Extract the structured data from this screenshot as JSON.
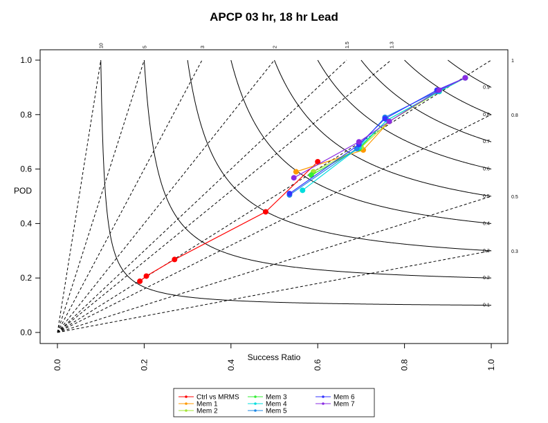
{
  "chart_data": {
    "type": "performance-diagram",
    "title": "APCP 03 hr, 18 hr Lead",
    "xlabel": "Success Ratio",
    "ylabel": "POD",
    "xlim": [
      0,
      1
    ],
    "ylim": [
      0,
      1
    ],
    "x_ticks": [
      "0.0",
      "0.2",
      "0.4",
      "0.6",
      "0.8",
      "1.0"
    ],
    "y_ticks": [
      "0.0",
      "0.2",
      "0.4",
      "0.6",
      "0.8",
      "1.0"
    ],
    "csi_contours": [
      0.1,
      0.2,
      0.3,
      0.4,
      0.5,
      0.6,
      0.7,
      0.8,
      0.9
    ],
    "csi_labels": [
      "0.1",
      "0.2",
      "0.3",
      "0.4",
      "0.5",
      "0.6",
      "0.7",
      "0.8",
      "0.9"
    ],
    "bias_lines": [
      0.3,
      0.5,
      0.8,
      1,
      1.3,
      1.5,
      2,
      3,
      5,
      10
    ],
    "bias_labels": [
      "0.3",
      "0.5",
      "0.8",
      "1",
      "1.3",
      "1.5",
      "2",
      "3",
      "5",
      "10"
    ],
    "series": [
      {
        "name": "Ctrl vs MRMS",
        "color": "#ff0000",
        "x": [
          0.19,
          0.205,
          0.27,
          0.48,
          0.6
        ],
        "y": [
          0.188,
          0.207,
          0.268,
          0.443,
          0.627
        ]
      },
      {
        "name": "Mem 1",
        "color": "#ff9900",
        "x": [
          0.55,
          0.705,
          0.765,
          0.875,
          0.94
        ],
        "y": [
          0.59,
          0.67,
          0.775,
          0.885,
          0.935
        ]
      },
      {
        "name": "Mem 2",
        "color": "#a3e635",
        "x": [
          0.59,
          0.7,
          0.765,
          0.88,
          0.94
        ],
        "y": [
          0.59,
          0.68,
          0.775,
          0.885,
          0.935
        ]
      },
      {
        "name": "Mem 3",
        "color": "#33ee33",
        "x": [
          0.585,
          0.695,
          0.76,
          0.88,
          0.94
        ],
        "y": [
          0.578,
          0.675,
          0.78,
          0.885,
          0.935
        ]
      },
      {
        "name": "Mem 4",
        "color": "#00dddd",
        "x": [
          0.565,
          0.695,
          0.76,
          0.88,
          0.94
        ],
        "y": [
          0.522,
          0.68,
          0.78,
          0.885,
          0.935
        ]
      },
      {
        "name": "Mem 5",
        "color": "#1e88e5",
        "x": [
          0.535,
          0.69,
          0.755,
          0.875,
          0.94
        ],
        "y": [
          0.505,
          0.675,
          0.79,
          0.885,
          0.935
        ]
      },
      {
        "name": "Mem 6",
        "color": "#3333ff",
        "x": [
          0.535,
          0.695,
          0.755,
          0.875,
          0.94
        ],
        "y": [
          0.51,
          0.69,
          0.785,
          0.89,
          0.935
        ]
      },
      {
        "name": "Mem 7",
        "color": "#8a2be2",
        "x": [
          0.545,
          0.695,
          0.765,
          0.88,
          0.94
        ],
        "y": [
          0.568,
          0.7,
          0.775,
          0.89,
          0.935
        ]
      }
    ]
  }
}
